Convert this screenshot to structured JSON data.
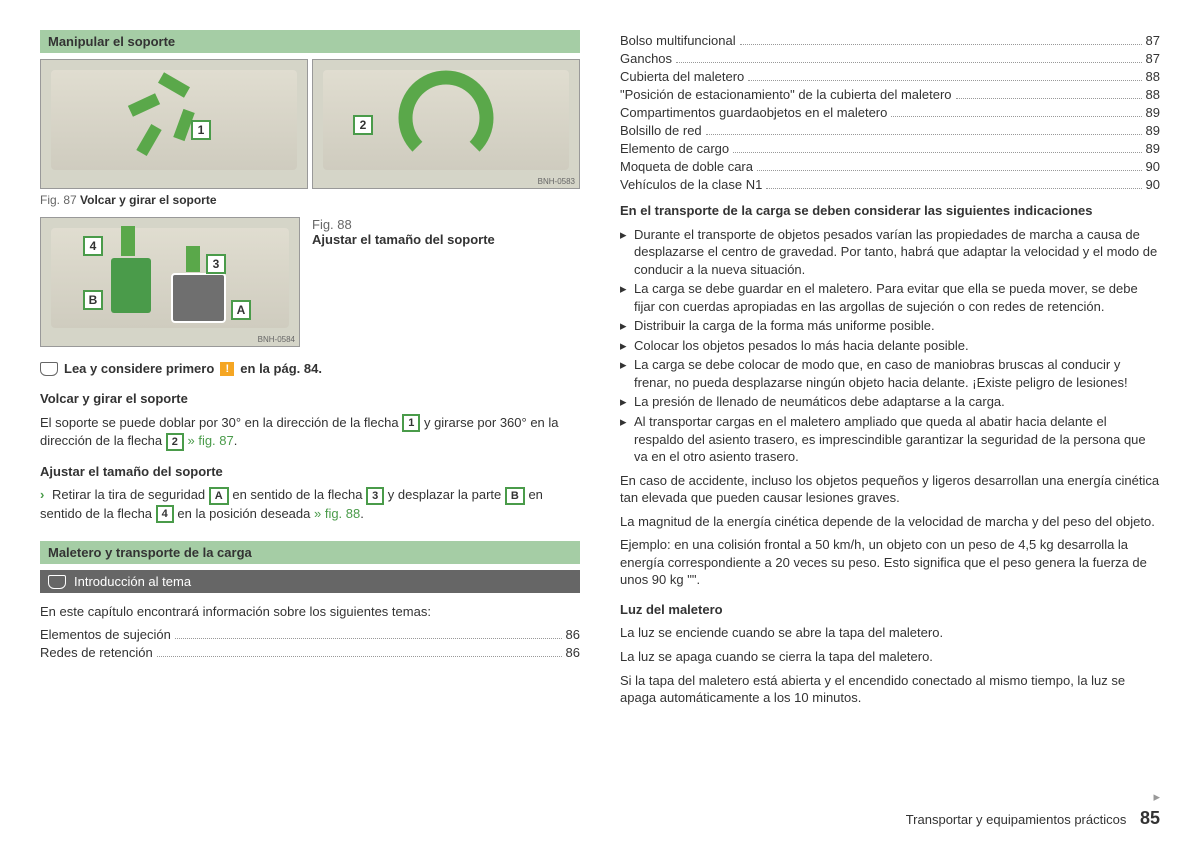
{
  "left": {
    "header1": "Manipular el soporte",
    "fig87": {
      "num": "Fig. 87",
      "title": "Volcar y girar el soporte",
      "bnh": "BNH-0583"
    },
    "fig88": {
      "num": "Fig. 88",
      "title": "Ajustar el tamaño del soporte",
      "bnh": "BNH-0584"
    },
    "badges": {
      "b1": "1",
      "b2": "2",
      "b3": "3",
      "b4": "4",
      "A": "A",
      "B": "B"
    },
    "readfirst_a": "Lea y considere primero",
    "readfirst_b": "en la pág. 84.",
    "warn_sym": "!",
    "sub1": "Volcar y girar el soporte",
    "p1a": "El soporte se puede doblar por 30° en la dirección de la flecha ",
    "p1b": " y girarse por 360° en la dirección de la flecha ",
    "p1c": " » fig. 87",
    "p1d": ".",
    "sub2": "Ajustar el tamaño del soporte",
    "p2a": "Retirar la tira de seguridad ",
    "p2b": " en sentido de la flecha ",
    "p2c": " y desplazar la parte ",
    "p2d": " en sentido de la flecha ",
    "p2e": " en la posición deseada ",
    "p2f": "» fig. 88",
    "p2g": ".",
    "header2": "Maletero y transporte de la carga",
    "intro": "Introducción al tema",
    "intro_line": "En este capítulo encontrará información sobre los siguientes temas:",
    "toc": [
      {
        "label": "Elementos de sujeción",
        "page": "86"
      },
      {
        "label": "Redes de retención",
        "page": "86"
      }
    ]
  },
  "right": {
    "toc": [
      {
        "label": "Bolso multifuncional",
        "page": "87"
      },
      {
        "label": "Ganchos",
        "page": "87"
      },
      {
        "label": "Cubierta del maletero",
        "page": "88"
      },
      {
        "label": "\"Posición de estacionamiento\" de la cubierta del maletero",
        "page": "88"
      },
      {
        "label": "Compartimentos guardaobjetos en el maletero",
        "page": "89"
      },
      {
        "label": "Bolsillo de red",
        "page": "89"
      },
      {
        "label": "Elemento de cargo",
        "page": "89"
      },
      {
        "label": "Moqueta de doble cara",
        "page": "90"
      },
      {
        "label": "Vehículos de la clase N1",
        "page": "90"
      }
    ],
    "bold_line": "En el transporte de la carga se deben considerar las siguientes indicaciones",
    "bullets": [
      "Durante el transporte de objetos pesados varían las propiedades de marcha a causa de desplazarse el centro de gravedad. Por tanto, habrá que adaptar la velocidad y el modo de conducir a la nueva situación.",
      "La carga se debe guardar en el maletero. Para evitar que ella se pueda mover, se debe fijar con cuerdas apropiadas en las argollas de sujeción o con redes de retención.",
      "Distribuir la carga de la forma más uniforme posible.",
      "Colocar los objetos pesados lo más hacia delante posible.",
      "La carga se debe colocar de modo que, en caso de maniobras bruscas al conducir y frenar, no pueda desplazarse ningún objeto hacia delante. ¡Existe peligro de lesiones!",
      "La presión de llenado de neumáticos debe adaptarse a la carga.",
      "Al transportar cargas en el maletero ampliado que queda al abatir hacia delante el respaldo del asiento trasero, es imprescindible garantizar la seguridad de la persona que va en el otro asiento trasero."
    ],
    "para1": "En caso de accidente, incluso los objetos pequeños y ligeros desarrollan una energía cinética tan elevada que pueden causar lesiones graves.",
    "para2": "La magnitud de la energía cinética depende de la velocidad de marcha y del peso del objeto.",
    "para3": "Ejemplo: en una colisión frontal a 50 km/h, un objeto con un peso de 4,5 kg desarrolla la energía correspondiente a 20 veces su peso. Esto significa que el peso genera la fuerza de unos 90 kg \"\".",
    "luz_head": "Luz del maletero",
    "luz1": "La luz se enciende cuando se abre la tapa del maletero.",
    "luz2": "La luz se apaga cuando se cierra la tapa del maletero.",
    "luz3": "Si la tapa del maletero está abierta y el encendido conectado al mismo tiempo, la luz se apaga automáticamente a los 10 minutos."
  },
  "footer": {
    "section": "Transportar y equipamientos prácticos",
    "page": "85"
  }
}
